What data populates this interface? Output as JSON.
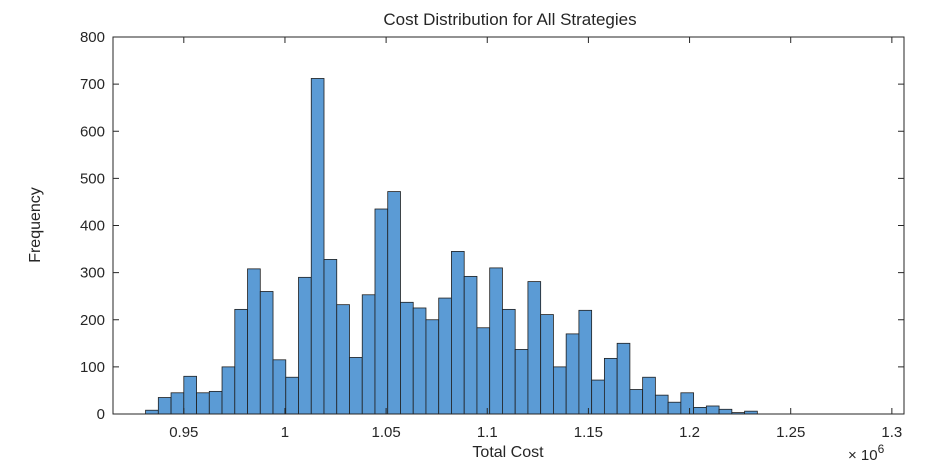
{
  "chart_data": {
    "type": "bar",
    "title": "Cost Distribution for All Strategies",
    "xlabel": "Total Cost",
    "ylabel": "Frequency",
    "exponent_label": "× 10",
    "exponent_value": "6",
    "xlim": [
      0.915,
      1.306
    ],
    "ylim": [
      0,
      800
    ],
    "xticks": [
      0.95,
      1,
      1.05,
      1.1,
      1.15,
      1.2,
      1.25,
      1.3
    ],
    "xtick_labels": [
      "0.95",
      "1",
      "1.05",
      "1.1",
      "1.15",
      "1.2",
      "1.25",
      "1.3"
    ],
    "yticks": [
      0,
      100,
      200,
      300,
      400,
      500,
      600,
      700,
      800
    ],
    "ytick_labels": [
      "0",
      "100",
      "200",
      "300",
      "400",
      "500",
      "600",
      "700",
      "800"
    ],
    "grid": false,
    "bar_color": "#5b9bd5",
    "edge_color": "#1f1f1f",
    "bin_start": 0.9311,
    "bin_width": 0.0063,
    "values": [
      8,
      35,
      45,
      80,
      45,
      48,
      100,
      222,
      308,
      260,
      115,
      78,
      290,
      712,
      328,
      232,
      120,
      253,
      435,
      472,
      237,
      225,
      200,
      246,
      345,
      292,
      183,
      310,
      222,
      137,
      281,
      211,
      100,
      170,
      220,
      72,
      118,
      150,
      52,
      78,
      40,
      25,
      45,
      14,
      17,
      10,
      3,
      6
    ]
  }
}
